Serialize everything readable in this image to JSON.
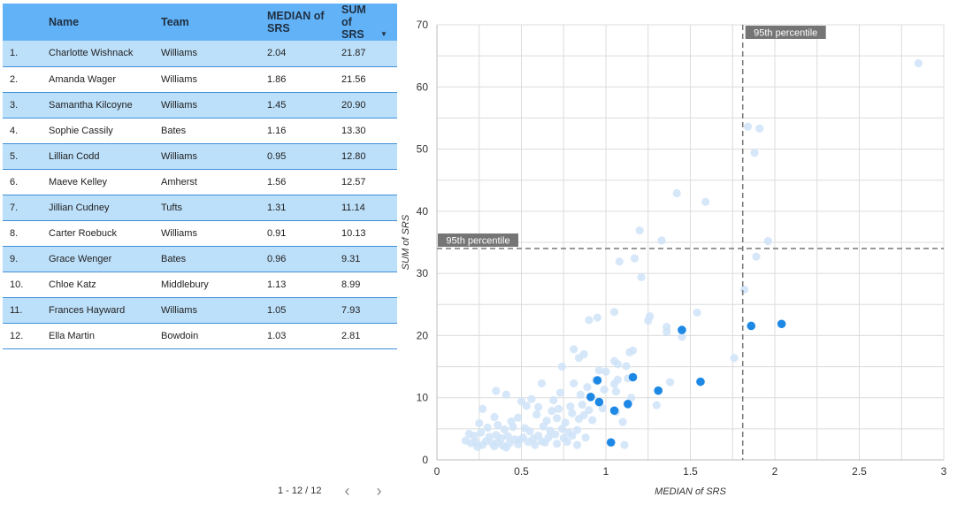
{
  "table": {
    "columns": [
      "",
      "Name",
      "Team",
      "MEDIAN of SRS",
      "SUM of SRS"
    ],
    "sort_icon": "sort-descending-icon",
    "rows": [
      {
        "idx": "1.",
        "name": "Charlotte Wishnack",
        "team": "Williams",
        "median": "2.04",
        "sum": "21.87"
      },
      {
        "idx": "2.",
        "name": "Amanda Wager",
        "team": "Williams",
        "median": "1.86",
        "sum": "21.56"
      },
      {
        "idx": "3.",
        "name": "Samantha Kilcoyne",
        "team": "Williams",
        "median": "1.45",
        "sum": "20.90"
      },
      {
        "idx": "4.",
        "name": "Sophie Cassily",
        "team": "Bates",
        "median": "1.16",
        "sum": "13.30"
      },
      {
        "idx": "5.",
        "name": "Lillian Codd",
        "team": "Williams",
        "median": "0.95",
        "sum": "12.80"
      },
      {
        "idx": "6.",
        "name": "Maeve Kelley",
        "team": "Amherst",
        "median": "1.56",
        "sum": "12.57"
      },
      {
        "idx": "7.",
        "name": "Jillian Cudney",
        "team": "Tufts",
        "median": "1.31",
        "sum": "11.14"
      },
      {
        "idx": "8.",
        "name": "Carter Roebuck",
        "team": "Williams",
        "median": "0.91",
        "sum": "10.13"
      },
      {
        "idx": "9.",
        "name": "Grace Wenger",
        "team": "Bates",
        "median": "0.96",
        "sum": "9.31"
      },
      {
        "idx": "10.",
        "name": "Chloe Katz",
        "team": "Middlebury",
        "median": "1.13",
        "sum": "8.99"
      },
      {
        "idx": "11.",
        "name": "Frances Hayward",
        "team": "Williams",
        "median": "1.05",
        "sum": "7.93"
      },
      {
        "idx": "12.",
        "name": "Ella Martin",
        "team": "Bowdoin",
        "median": "1.03",
        "sum": "2.81"
      }
    ]
  },
  "pagination": {
    "range": "1 - 12 / 12",
    "prev": "‹",
    "next": "›",
    "prev_icon": "chevron-left-icon",
    "next_icon": "chevron-right-icon"
  },
  "chart_data": {
    "type": "scatter",
    "xlabel": "MEDIAN of SRS",
    "ylabel": "SUM of SRS",
    "xlim": [
      0,
      3
    ],
    "ylim": [
      0,
      70
    ],
    "xticks": [
      "0",
      "0.5",
      "1",
      "1.5",
      "2",
      "2.5",
      "3"
    ],
    "yticks": [
      "0",
      "10",
      "20",
      "30",
      "40",
      "50",
      "60",
      "70"
    ],
    "grid": true,
    "reference_lines": [
      {
        "axis": "x",
        "value": 1.81,
        "label": "95th percentile"
      },
      {
        "axis": "y",
        "value": 34.0,
        "label": "95th percentile"
      }
    ],
    "colors": {
      "highlight": "#1e88e5",
      "background": "#cfe3f8",
      "reference": "#777777",
      "label_bg": "#757575"
    },
    "highlighted": [
      [
        2.04,
        21.87
      ],
      [
        1.86,
        21.56
      ],
      [
        1.45,
        20.9
      ],
      [
        1.16,
        13.3
      ],
      [
        0.95,
        12.8
      ],
      [
        1.56,
        12.57
      ],
      [
        1.31,
        11.14
      ],
      [
        0.91,
        10.13
      ],
      [
        0.96,
        9.31
      ],
      [
        1.13,
        8.99
      ],
      [
        1.05,
        7.93
      ],
      [
        1.03,
        2.81
      ]
    ],
    "background": [
      [
        2.85,
        63.8
      ],
      [
        1.84,
        53.6
      ],
      [
        1.91,
        53.3
      ],
      [
        1.88,
        49.4
      ],
      [
        1.42,
        42.9
      ],
      [
        1.59,
        41.5
      ],
      [
        1.2,
        36.9
      ],
      [
        1.33,
        35.3
      ],
      [
        1.96,
        35.2
      ],
      [
        1.89,
        32.7
      ],
      [
        1.17,
        32.4
      ],
      [
        1.08,
        31.9
      ],
      [
        1.21,
        29.4
      ],
      [
        1.82,
        27.4
      ],
      [
        1.05,
        23.8
      ],
      [
        0.95,
        22.9
      ],
      [
        1.26,
        23.1
      ],
      [
        1.54,
        23.7
      ],
      [
        0.9,
        22.5
      ],
      [
        1.25,
        22.4
      ],
      [
        1.36,
        21.4
      ],
      [
        1.36,
        20.6
      ],
      [
        1.45,
        19.8
      ],
      [
        1.76,
        16.4
      ],
      [
        1.16,
        17.6
      ],
      [
        0.87,
        17.0
      ],
      [
        1.14,
        17.3
      ],
      [
        0.81,
        17.8
      ],
      [
        0.84,
        16.4
      ],
      [
        1.05,
        15.9
      ],
      [
        1.12,
        15.1
      ],
      [
        1.07,
        15.4
      ],
      [
        0.74,
        15.0
      ],
      [
        0.96,
        14.4
      ],
      [
        1.0,
        14.2
      ],
      [
        1.07,
        12.9
      ],
      [
        1.13,
        13.1
      ],
      [
        1.38,
        12.5
      ],
      [
        0.62,
        12.3
      ],
      [
        0.81,
        12.3
      ],
      [
        0.94,
        12.8
      ],
      [
        0.89,
        11.7
      ],
      [
        0.35,
        11.1
      ],
      [
        0.41,
        10.5
      ],
      [
        0.56,
        9.8
      ],
      [
        0.69,
        9.6
      ],
      [
        0.73,
        10.8
      ],
      [
        0.85,
        10.5
      ],
      [
        0.99,
        11.3
      ],
      [
        1.05,
        12.2
      ],
      [
        1.06,
        11.0
      ],
      [
        1.15,
        10.0
      ],
      [
        0.5,
        9.4
      ],
      [
        0.53,
        8.7
      ],
      [
        0.6,
        8.5
      ],
      [
        0.68,
        7.9
      ],
      [
        0.72,
        8.2
      ],
      [
        0.79,
        8.6
      ],
      [
        0.86,
        8.9
      ],
      [
        0.9,
        8.0
      ],
      [
        0.98,
        8.3
      ],
      [
        1.06,
        7.7
      ],
      [
        0.27,
        8.2
      ],
      [
        0.34,
        6.9
      ],
      [
        0.44,
        6.2
      ],
      [
        0.48,
        6.8
      ],
      [
        0.59,
        7.3
      ],
      [
        0.65,
        6.3
      ],
      [
        0.71,
        6.7
      ],
      [
        0.76,
        6.0
      ],
      [
        0.8,
        7.5
      ],
      [
        0.84,
        6.6
      ],
      [
        0.87,
        7.2
      ],
      [
        0.92,
        6.4
      ],
      [
        1.1,
        6.1
      ],
      [
        1.3,
        8.8
      ],
      [
        0.25,
        5.9
      ],
      [
        0.3,
        5.2
      ],
      [
        0.36,
        5.6
      ],
      [
        0.4,
        4.9
      ],
      [
        0.45,
        5.3
      ],
      [
        0.52,
        5.1
      ],
      [
        0.55,
        4.6
      ],
      [
        0.63,
        5.4
      ],
      [
        0.67,
        4.7
      ],
      [
        0.74,
        5.0
      ],
      [
        0.78,
        4.4
      ],
      [
        0.83,
        4.8
      ],
      [
        0.19,
        4.2
      ],
      [
        0.22,
        3.9
      ],
      [
        0.26,
        4.4
      ],
      [
        0.31,
        3.7
      ],
      [
        0.35,
        4.0
      ],
      [
        0.38,
        3.5
      ],
      [
        0.42,
        3.8
      ],
      [
        0.46,
        3.3
      ],
      [
        0.51,
        3.6
      ],
      [
        0.57,
        3.4
      ],
      [
        0.6,
        3.9
      ],
      [
        0.66,
        3.6
      ],
      [
        0.7,
        4.1
      ],
      [
        0.75,
        3.5
      ],
      [
        0.8,
        3.9
      ],
      [
        0.88,
        3.6
      ],
      [
        0.17,
        3.1
      ],
      [
        0.2,
        2.7
      ],
      [
        0.23,
        2.9
      ],
      [
        0.27,
        2.4
      ],
      [
        0.29,
        3.0
      ],
      [
        0.33,
        2.6
      ],
      [
        0.36,
        2.8
      ],
      [
        0.39,
        2.3
      ],
      [
        0.43,
        2.7
      ],
      [
        0.48,
        2.5
      ],
      [
        0.54,
        2.9
      ],
      [
        0.58,
        2.4
      ],
      [
        0.64,
        2.8
      ],
      [
        0.71,
        2.6
      ],
      [
        0.83,
        2.4
      ],
      [
        1.11,
        2.4
      ],
      [
        0.24,
        2.1
      ],
      [
        0.34,
        2.2
      ],
      [
        0.41,
        2.0
      ],
      [
        0.49,
        3.2
      ],
      [
        0.62,
        3.0
      ],
      [
        0.77,
        2.9
      ]
    ]
  }
}
